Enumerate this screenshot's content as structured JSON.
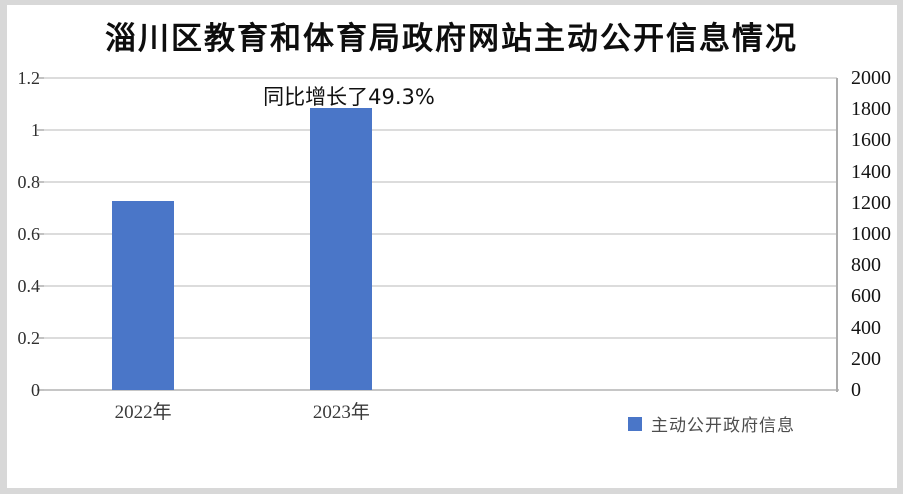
{
  "frame": {
    "color": "#d8d8d8"
  },
  "chart_data": {
    "type": "bar",
    "title": "淄川区教育和体育局政府网站主动公开信息情况",
    "annotation": "同比增长了49.3%",
    "categories": [
      "2022年",
      "2023年"
    ],
    "series": [
      {
        "name": "主动公开政府信息",
        "values": [
          1211,
          1808
        ],
        "color": "#4a76c8"
      }
    ],
    "value_axis": "right",
    "left_axis": {
      "min": 0,
      "max": 1.2,
      "ticks": [
        "1.2",
        "1",
        "0.8",
        "0.6",
        "0.4",
        "0.2",
        "0"
      ]
    },
    "right_axis": {
      "min": 0,
      "max": 2000,
      "ticks": [
        "2000",
        "1800",
        "1600",
        "1400",
        "1200",
        "1000",
        "800",
        "600",
        "400",
        "200",
        "0"
      ]
    },
    "grid": true,
    "legend_position": "bottom-right"
  },
  "legend": {
    "label": "主动公开政府信息",
    "swatch_color": "#4a76c8"
  }
}
